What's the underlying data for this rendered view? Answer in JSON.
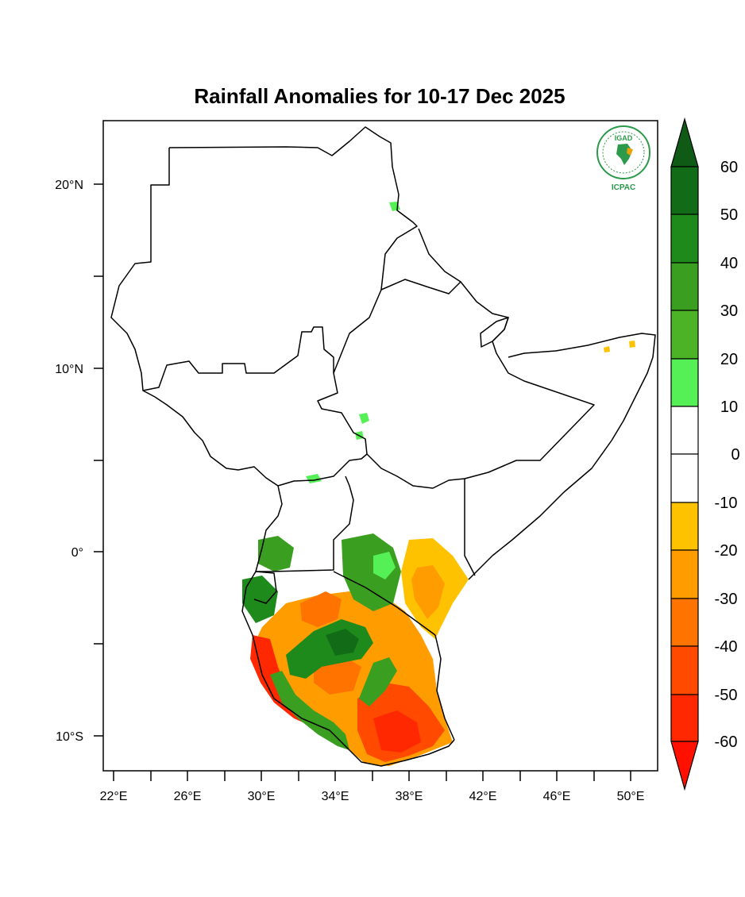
{
  "title": "Rainfall Anomalies for 10-17 Dec 2025",
  "logo": {
    "top_text": "IGAD",
    "bottom_text": "ICPAC"
  },
  "map": {
    "lat_labels": [
      "20°N",
      "10°N",
      "0°",
      "10°S"
    ],
    "lon_labels": [
      "22°E",
      "26°E",
      "30°E",
      "34°E",
      "38°E",
      "42°E",
      "46°E",
      "50°E"
    ]
  },
  "colorbar": {
    "labels": [
      "60",
      "50",
      "40",
      "30",
      "20",
      "10",
      "0",
      "-10",
      "-20",
      "-30",
      "-40",
      "-50",
      "-60"
    ],
    "colors": {
      "over": "#0f5a14",
      "c50_60": "#126b17",
      "c40_50": "#1f8a1c",
      "c30_40": "#3a9e20",
      "c20_30": "#4cb326",
      "c10_20": "#55f055",
      "c0_10": "#ffffff",
      "cm10_0": "#ffffff",
      "cm20_m10": "#ffc200",
      "cm30_m20": "#ff9d00",
      "cm40_m30": "#ff7300",
      "cm50_m40": "#ff4a00",
      "cm60_m50": "#ff2800",
      "under": "#ff1000"
    }
  }
}
